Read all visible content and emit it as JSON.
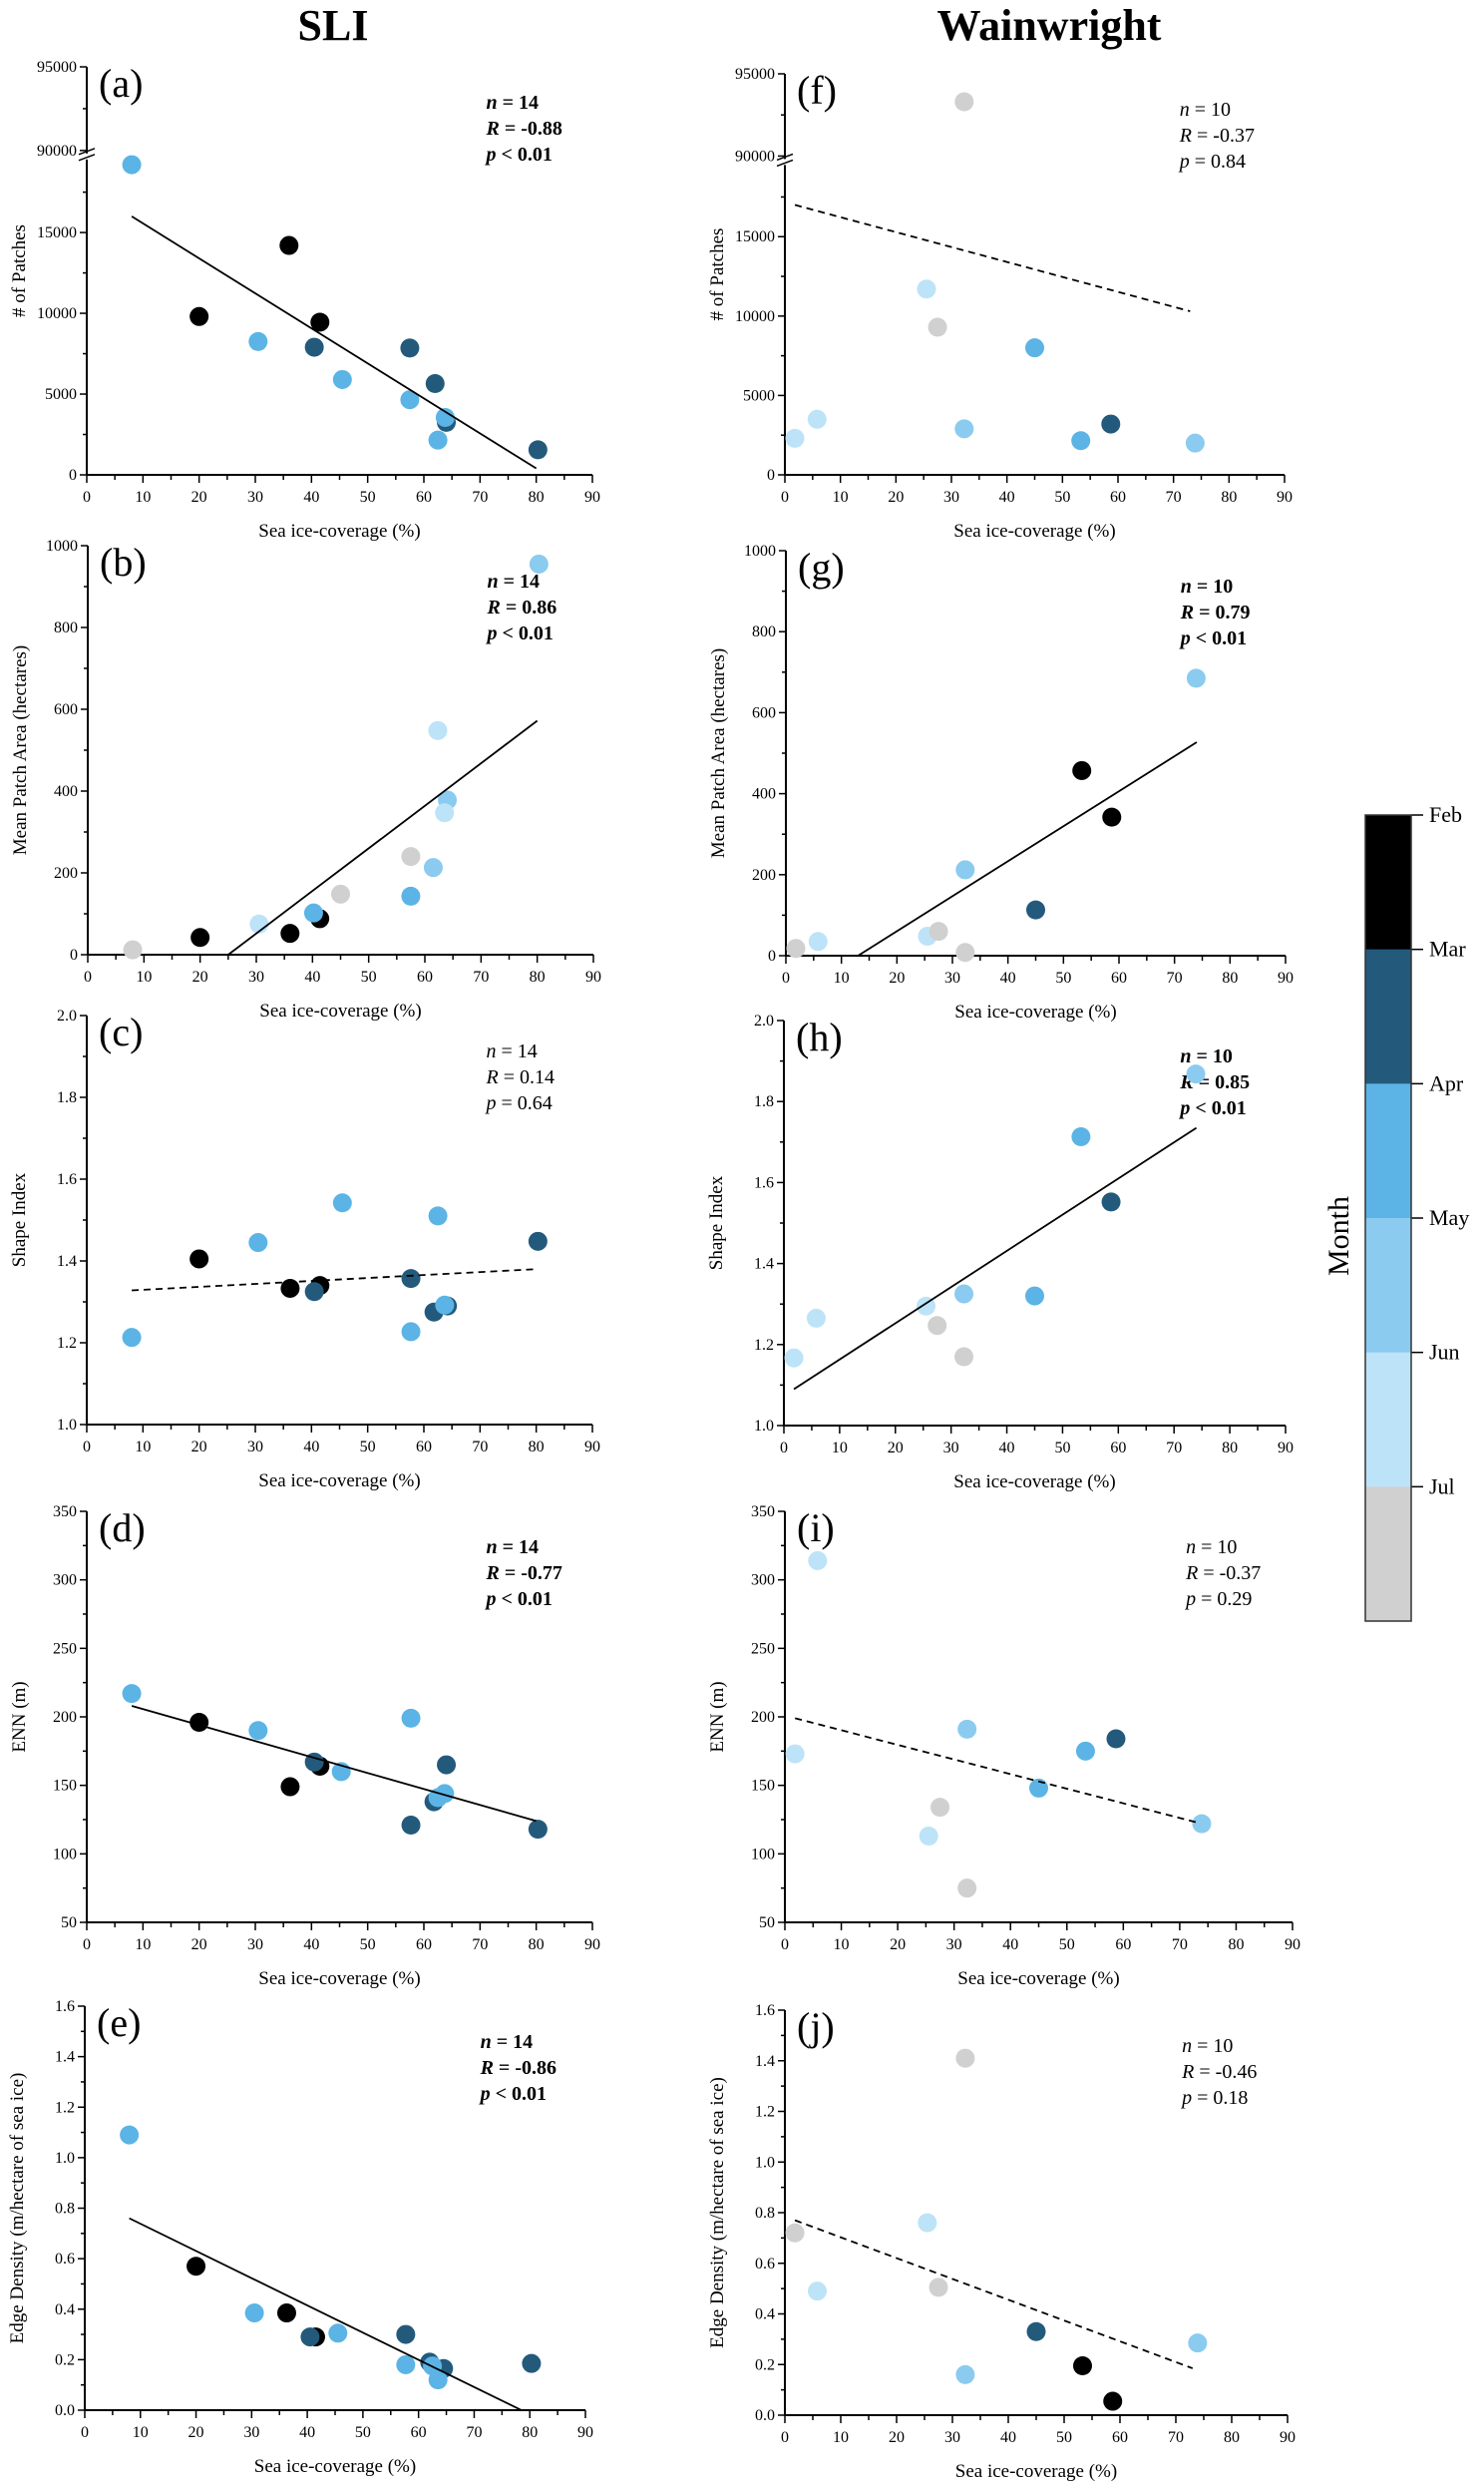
{
  "column_titles": [
    "SLI",
    "Wainwright"
  ],
  "colorbar": {
    "title": "Month",
    "months": [
      "Feb",
      "Mar",
      "Apr",
      "May",
      "Jun",
      "Jul"
    ],
    "colors": {
      "Feb": "#000000",
      "Mar": "#235a7c",
      "Apr": "#5bb4e5",
      "May": "#8bcbef",
      "Jun": "#bde3f8",
      "Jul": "#d0d0d0"
    }
  },
  "chart_data": [
    {
      "type": "scatter",
      "panel": "(a)",
      "site": "SLI",
      "xlabel": "Sea ice-coverage (%)",
      "ylabel": "# of Patches",
      "xlim": [
        0,
        90
      ],
      "xticks": [
        0,
        10,
        20,
        30,
        40,
        50,
        60,
        70,
        80,
        90
      ],
      "ylim": [
        0,
        95000
      ],
      "axis_break": [
        19700,
        90000
      ],
      "yticks": [
        0,
        5000,
        10000,
        15000,
        90000,
        95000
      ],
      "stats": {
        "n": "n = 14",
        "R": "R = -0.88",
        "p": "p < 0.01",
        "bold": true
      },
      "trend": {
        "style": "solid",
        "x": [
          8,
          80
        ],
        "y": [
          16000,
          400
        ]
      },
      "points": [
        {
          "x": 8,
          "y": 19200,
          "month": "Apr"
        },
        {
          "x": 20,
          "y": 9800,
          "month": "Feb"
        },
        {
          "x": 30.5,
          "y": 8250,
          "month": "Apr"
        },
        {
          "x": 36,
          "y": 14200,
          "month": "Feb"
        },
        {
          "x": 40.5,
          "y": 7900,
          "month": "Mar"
        },
        {
          "x": 41.5,
          "y": 9450,
          "month": "Feb"
        },
        {
          "x": 45.5,
          "y": 5900,
          "month": "Apr"
        },
        {
          "x": 57.5,
          "y": 7850,
          "month": "Mar"
        },
        {
          "x": 57.5,
          "y": 4650,
          "month": "Apr"
        },
        {
          "x": 62,
          "y": 5650,
          "month": "Mar"
        },
        {
          "x": 62.5,
          "y": 2150,
          "month": "Apr"
        },
        {
          "x": 64,
          "y": 3250,
          "month": "Mar"
        },
        {
          "x": 63.8,
          "y": 3550,
          "month": "Apr"
        },
        {
          "x": 80.3,
          "y": 1550,
          "month": "Mar"
        }
      ]
    },
    {
      "type": "scatter",
      "panel": "(b)",
      "site": "SLI",
      "xlabel": "Sea ice-coverage (%)",
      "ylabel": "Mean Patch Area (hectares)",
      "xlim": [
        0,
        90
      ],
      "xticks": [
        0,
        10,
        20,
        30,
        40,
        50,
        60,
        70,
        80,
        90
      ],
      "ylim": [
        0,
        1000
      ],
      "yticks": [
        0,
        200,
        400,
        600,
        800,
        1000
      ],
      "stats": {
        "n": "n = 14",
        "R": "R = 0.86",
        "p": "p < 0.01",
        "bold": true
      },
      "trend": {
        "style": "solid",
        "x": [
          25,
          80
        ],
        "y": [
          0,
          572
        ]
      },
      "points": [
        {
          "x": 8,
          "y": 12,
          "month": "Jul"
        },
        {
          "x": 20,
          "y": 42,
          "month": "Feb"
        },
        {
          "x": 30.5,
          "y": 75,
          "month": "Jun"
        },
        {
          "x": 36,
          "y": 52,
          "month": "Feb"
        },
        {
          "x": 41.3,
          "y": 88,
          "month": "Feb"
        },
        {
          "x": 40.2,
          "y": 102,
          "month": "Apr"
        },
        {
          "x": 45,
          "y": 148,
          "month": "Jul"
        },
        {
          "x": 57.5,
          "y": 240,
          "month": "Jul"
        },
        {
          "x": 57.5,
          "y": 143,
          "month": "Apr"
        },
        {
          "x": 61.5,
          "y": 213,
          "month": "May"
        },
        {
          "x": 62.3,
          "y": 548,
          "month": "Jun"
        },
        {
          "x": 64,
          "y": 378,
          "month": "May"
        },
        {
          "x": 63.5,
          "y": 347,
          "month": "Jun"
        },
        {
          "x": 80.3,
          "y": 955,
          "month": "May"
        }
      ]
    },
    {
      "type": "scatter",
      "panel": "(c)",
      "site": "SLI",
      "xlabel": "Sea ice-coverage (%)",
      "ylabel": "Shape Index",
      "xlim": [
        0,
        90
      ],
      "xticks": [
        0,
        10,
        20,
        30,
        40,
        50,
        60,
        70,
        80,
        90
      ],
      "ylim": [
        1.0,
        2.0
      ],
      "yticks": [
        "1.0",
        "1.2",
        "1.4",
        "1.6",
        "1.8",
        "2.0"
      ],
      "stats": {
        "n": "n = 14",
        "R": "R = 0.14",
        "p": "p = 0.64",
        "bold": false
      },
      "trend": {
        "style": "dashed",
        "x": [
          8,
          80
        ],
        "y": [
          1.328,
          1.38
        ]
      },
      "points": [
        {
          "x": 8,
          "y": 1.213,
          "month": "Apr"
        },
        {
          "x": 20,
          "y": 1.405,
          "month": "Feb"
        },
        {
          "x": 30.5,
          "y": 1.445,
          "month": "Apr"
        },
        {
          "x": 36.2,
          "y": 1.333,
          "month": "Feb"
        },
        {
          "x": 41.5,
          "y": 1.34,
          "month": "Feb"
        },
        {
          "x": 40.5,
          "y": 1.325,
          "month": "Mar"
        },
        {
          "x": 45.5,
          "y": 1.542,
          "month": "Apr"
        },
        {
          "x": 57.7,
          "y": 1.357,
          "month": "Mar"
        },
        {
          "x": 57.7,
          "y": 1.227,
          "month": "Apr"
        },
        {
          "x": 61.8,
          "y": 1.275,
          "month": "Mar"
        },
        {
          "x": 64.2,
          "y": 1.29,
          "month": "Mar"
        },
        {
          "x": 63.7,
          "y": 1.292,
          "month": "Apr"
        },
        {
          "x": 62.5,
          "y": 1.51,
          "month": "Apr"
        },
        {
          "x": 80.3,
          "y": 1.448,
          "month": "Mar"
        }
      ]
    },
    {
      "type": "scatter",
      "panel": "(d)",
      "site": "SLI",
      "xlabel": "Sea ice-coverage (%)",
      "ylabel": "ENN (m)",
      "xlim": [
        0,
        90
      ],
      "xticks": [
        0,
        10,
        20,
        30,
        40,
        50,
        60,
        70,
        80,
        90
      ],
      "ylim": [
        50,
        350
      ],
      "yticks": [
        50,
        100,
        150,
        200,
        250,
        300,
        350
      ],
      "stats": {
        "n": "n = 14",
        "R": "R = -0.77",
        "p": "p < 0.01",
        "bold": true
      },
      "trend": {
        "style": "solid",
        "x": [
          8,
          80
        ],
        "y": [
          208,
          124
        ]
      },
      "points": [
        {
          "x": 8,
          "y": 217,
          "month": "Apr"
        },
        {
          "x": 20,
          "y": 196,
          "month": "Feb"
        },
        {
          "x": 30.5,
          "y": 190,
          "month": "Apr"
        },
        {
          "x": 36.2,
          "y": 149,
          "month": "Feb"
        },
        {
          "x": 41.5,
          "y": 164,
          "month": "Feb"
        },
        {
          "x": 40.5,
          "y": 167,
          "month": "Mar"
        },
        {
          "x": 45.3,
          "y": 160,
          "month": "Apr"
        },
        {
          "x": 57.7,
          "y": 199,
          "month": "Apr"
        },
        {
          "x": 57.7,
          "y": 121,
          "month": "Mar"
        },
        {
          "x": 61.8,
          "y": 138,
          "month": "Mar"
        },
        {
          "x": 62.5,
          "y": 141,
          "month": "Apr"
        },
        {
          "x": 64,
          "y": 165,
          "month": "Mar"
        },
        {
          "x": 63.7,
          "y": 144,
          "month": "Apr"
        },
        {
          "x": 80.3,
          "y": 118,
          "month": "Mar"
        }
      ]
    },
    {
      "type": "scatter",
      "panel": "(e)",
      "site": "SLI",
      "xlabel": "Sea ice-coverage (%)",
      "ylabel": "Edge Density  (m/hectare of sea ice)",
      "xlim": [
        0,
        90
      ],
      "xticks": [
        0,
        10,
        20,
        30,
        40,
        50,
        60,
        70,
        80,
        90
      ],
      "ylim": [
        0.0,
        1.6
      ],
      "yticks": [
        "0.0",
        "0.2",
        "0.4",
        "0.6",
        "0.8",
        "1.0",
        "1.2",
        "1.4",
        "1.6"
      ],
      "stats": {
        "n": "n = 14",
        "R": "R = -0.86",
        "p": "p < 0.01",
        "bold": true
      },
      "trend": {
        "style": "solid",
        "x": [
          8,
          78.5
        ],
        "y": [
          0.76,
          0.0
        ]
      },
      "points": [
        {
          "x": 8,
          "y": 1.09,
          "month": "Apr"
        },
        {
          "x": 20,
          "y": 0.57,
          "month": "Feb"
        },
        {
          "x": 30.5,
          "y": 0.385,
          "month": "Apr"
        },
        {
          "x": 36.3,
          "y": 0.385,
          "month": "Feb"
        },
        {
          "x": 41.5,
          "y": 0.29,
          "month": "Feb"
        },
        {
          "x": 40.5,
          "y": 0.29,
          "month": "Mar"
        },
        {
          "x": 45.5,
          "y": 0.305,
          "month": "Apr"
        },
        {
          "x": 57.7,
          "y": 0.3,
          "month": "Mar"
        },
        {
          "x": 57.7,
          "y": 0.18,
          "month": "Apr"
        },
        {
          "x": 62,
          "y": 0.19,
          "month": "Mar"
        },
        {
          "x": 64.5,
          "y": 0.165,
          "month": "Mar"
        },
        {
          "x": 62.5,
          "y": 0.175,
          "month": "Apr"
        },
        {
          "x": 63.5,
          "y": 0.12,
          "month": "Apr"
        },
        {
          "x": 80.3,
          "y": 0.185,
          "month": "Mar"
        }
      ]
    },
    {
      "type": "scatter",
      "panel": "(f)",
      "site": "Wainwright",
      "xlabel": "Sea ice-coverage (%)",
      "ylabel": "# of Patches",
      "xlim": [
        0,
        90
      ],
      "xticks": [
        0,
        10,
        20,
        30,
        40,
        50,
        60,
        70,
        80,
        90
      ],
      "ylim": [
        0,
        95000
      ],
      "axis_break": [
        19700,
        90000
      ],
      "yticks": [
        0,
        5000,
        10000,
        15000,
        90000,
        95000
      ],
      "stats": {
        "n": "n = 10",
        "R": "R = -0.37",
        "p": "p = 0.84",
        "bold": false
      },
      "trend": {
        "style": "dashed",
        "x": [
          1.8,
          73
        ],
        "y": [
          17000,
          10300
        ]
      },
      "points": [
        {
          "x": 32.3,
          "y": 93300,
          "month": "Jul"
        },
        {
          "x": 1.8,
          "y": 2300,
          "month": "Jun"
        },
        {
          "x": 5.8,
          "y": 3500,
          "month": "Jun"
        },
        {
          "x": 25.5,
          "y": 11700,
          "month": "Jun"
        },
        {
          "x": 27.5,
          "y": 9300,
          "month": "Jul"
        },
        {
          "x": 32.3,
          "y": 2900,
          "month": "May"
        },
        {
          "x": 45,
          "y": 8000,
          "month": "Apr"
        },
        {
          "x": 53.3,
          "y": 2150,
          "month": "Apr"
        },
        {
          "x": 58.7,
          "y": 3200,
          "month": "Mar"
        },
        {
          "x": 73.9,
          "y": 2000,
          "month": "May"
        }
      ]
    },
    {
      "type": "scatter",
      "panel": "(g)",
      "site": "Wainwright",
      "xlabel": "Sea ice-coverage (%)",
      "ylabel": "Mean Patch Area (hectares)",
      "xlim": [
        0,
        90
      ],
      "xticks": [
        0,
        10,
        20,
        30,
        40,
        50,
        60,
        70,
        80,
        90
      ],
      "ylim": [
        0,
        1000
      ],
      "yticks": [
        0,
        200,
        400,
        600,
        800,
        1000
      ],
      "stats": {
        "n": "n = 10",
        "R": "R = 0.79",
        "p": "p < 0.01",
        "bold": true
      },
      "trend": {
        "style": "solid",
        "x": [
          13,
          74
        ],
        "y": [
          0,
          527
        ]
      },
      "points": [
        {
          "x": 1.8,
          "y": 18,
          "month": "Jul"
        },
        {
          "x": 5.8,
          "y": 35,
          "month": "Jun"
        },
        {
          "x": 25.5,
          "y": 48,
          "month": "Jun"
        },
        {
          "x": 27.5,
          "y": 60,
          "month": "Jul"
        },
        {
          "x": 32.3,
          "y": 8,
          "month": "Jul"
        },
        {
          "x": 32.3,
          "y": 212,
          "month": "May"
        },
        {
          "x": 45,
          "y": 113,
          "month": "Mar"
        },
        {
          "x": 53.3,
          "y": 457,
          "month": "Feb"
        },
        {
          "x": 58.7,
          "y": 342,
          "month": "Feb"
        },
        {
          "x": 73.9,
          "y": 685,
          "month": "May"
        }
      ]
    },
    {
      "type": "scatter",
      "panel": "(h)",
      "site": "Wainwright",
      "xlabel": "Sea ice-coverage (%)",
      "ylabel": "Shape Index",
      "xlim": [
        0,
        90
      ],
      "xticks": [
        0,
        10,
        20,
        30,
        40,
        50,
        60,
        70,
        80,
        90
      ],
      "ylim": [
        1.0,
        2.0
      ],
      "yticks": [
        "1.0",
        "1.2",
        "1.4",
        "1.6",
        "1.8",
        "2.0"
      ],
      "stats": {
        "n": "n = 10",
        "R": "R = 0.85",
        "p": "p < 0.01",
        "bold": true
      },
      "trend": {
        "style": "solid",
        "x": [
          1.8,
          74
        ],
        "y": [
          1.09,
          1.735
        ]
      },
      "points": [
        {
          "x": 1.8,
          "y": 1.167,
          "month": "Jun"
        },
        {
          "x": 5.8,
          "y": 1.265,
          "month": "Jun"
        },
        {
          "x": 25.5,
          "y": 1.295,
          "month": "Jun"
        },
        {
          "x": 27.5,
          "y": 1.247,
          "month": "Jul"
        },
        {
          "x": 32.3,
          "y": 1.17,
          "month": "Jul"
        },
        {
          "x": 32.3,
          "y": 1.325,
          "month": "May"
        },
        {
          "x": 45,
          "y": 1.32,
          "month": "Apr"
        },
        {
          "x": 53.3,
          "y": 1.713,
          "month": "Apr"
        },
        {
          "x": 58.7,
          "y": 1.552,
          "month": "Mar"
        },
        {
          "x": 73.9,
          "y": 1.868,
          "month": "May"
        }
      ]
    },
    {
      "type": "scatter",
      "panel": "(i)",
      "site": "Wainwright",
      "xlabel": "Sea ice-coverage (%)",
      "ylabel": "ENN (m)",
      "xlim": [
        0,
        90
      ],
      "xticks": [
        0,
        10,
        20,
        30,
        40,
        50,
        60,
        70,
        80,
        90
      ],
      "ylim": [
        50,
        350
      ],
      "yticks": [
        50,
        100,
        150,
        200,
        250,
        300,
        350
      ],
      "stats": {
        "n": "n = 10",
        "R": "R = -0.37",
        "p": "p = 0.29",
        "bold": false
      },
      "trend": {
        "style": "dashed",
        "x": [
          1.8,
          73
        ],
        "y": [
          199,
          123
        ]
      },
      "points": [
        {
          "x": 1.8,
          "y": 173,
          "month": "Jun"
        },
        {
          "x": 5.8,
          "y": 314,
          "month": "Jun"
        },
        {
          "x": 25.5,
          "y": 113,
          "month": "Jun"
        },
        {
          "x": 27.5,
          "y": 134,
          "month": "Jul"
        },
        {
          "x": 32.3,
          "y": 75,
          "month": "Jul"
        },
        {
          "x": 32.3,
          "y": 191,
          "month": "May"
        },
        {
          "x": 45,
          "y": 148,
          "month": "Apr"
        },
        {
          "x": 53.3,
          "y": 175,
          "month": "Apr"
        },
        {
          "x": 58.7,
          "y": 184,
          "month": "Mar"
        },
        {
          "x": 73.9,
          "y": 122,
          "month": "May"
        }
      ]
    },
    {
      "type": "scatter",
      "panel": "(j)",
      "site": "Wainwright",
      "xlabel": "Sea ice-coverage (%)",
      "ylabel": "Edge Density  (m/hectare of sea ice)",
      "xlim": [
        0,
        90
      ],
      "xticks": [
        0,
        10,
        20,
        30,
        40,
        50,
        60,
        70,
        80,
        90
      ],
      "ylim": [
        0.0,
        1.6
      ],
      "yticks": [
        "0.0",
        "0.2",
        "0.4",
        "0.6",
        "0.8",
        "1.0",
        "1.2",
        "1.4",
        "1.6"
      ],
      "stats": {
        "n": "n = 10",
        "R": "R = -0.46",
        "p": "p = 0.18",
        "bold": false
      },
      "trend": {
        "style": "dashed",
        "x": [
          1.8,
          73
        ],
        "y": [
          0.77,
          0.185
        ]
      },
      "points": [
        {
          "x": 1.8,
          "y": 0.72,
          "month": "Jul"
        },
        {
          "x": 5.8,
          "y": 0.49,
          "month": "Jun"
        },
        {
          "x": 25.5,
          "y": 0.76,
          "month": "Jun"
        },
        {
          "x": 27.5,
          "y": 0.505,
          "month": "Jul"
        },
        {
          "x": 32.3,
          "y": 1.41,
          "month": "Jul"
        },
        {
          "x": 32.3,
          "y": 0.16,
          "month": "May"
        },
        {
          "x": 45,
          "y": 0.33,
          "month": "Mar"
        },
        {
          "x": 53.3,
          "y": 0.195,
          "month": "Feb"
        },
        {
          "x": 58.7,
          "y": 0.055,
          "month": "Feb"
        },
        {
          "x": 73.9,
          "y": 0.285,
          "month": "May"
        }
      ]
    }
  ]
}
